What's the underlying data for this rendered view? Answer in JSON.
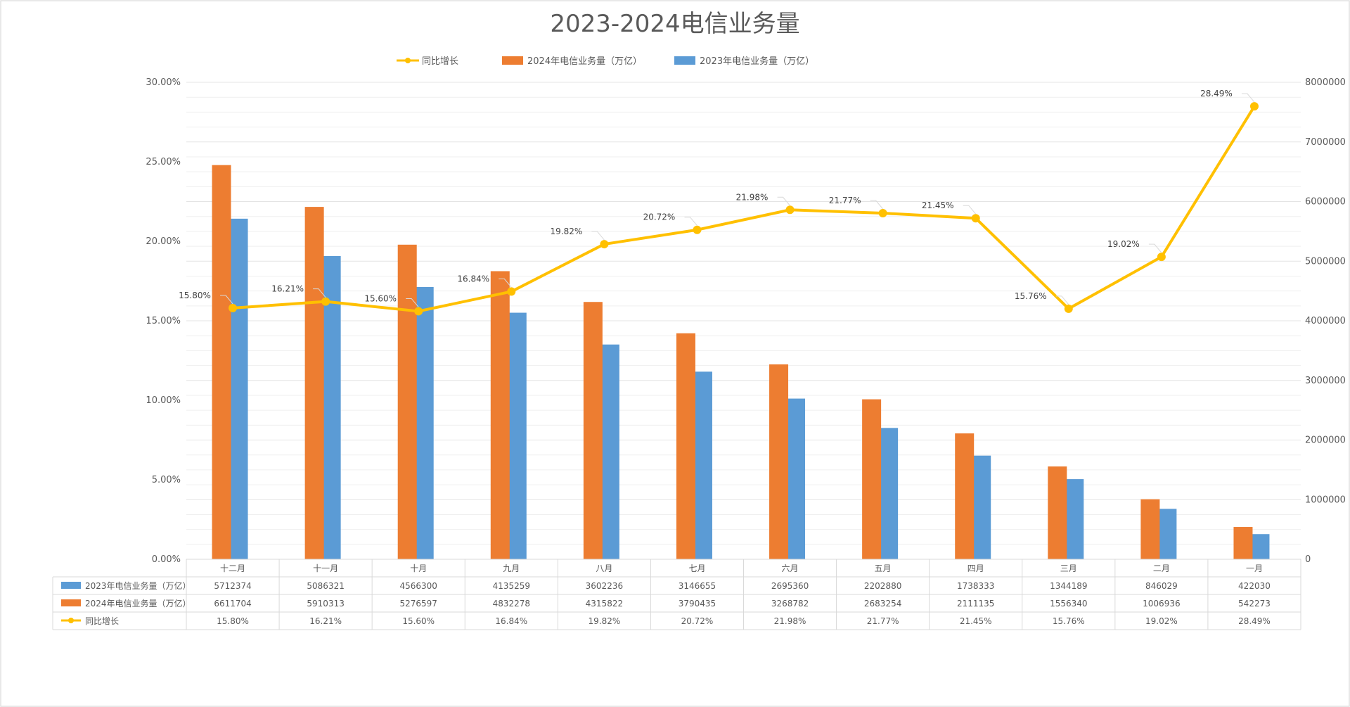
{
  "chart_data": {
    "type": "bar",
    "title": "2023-2024电信业务量",
    "categories": [
      "一月",
      "二月",
      "三月",
      "四月",
      "五月",
      "六月",
      "七月",
      "八月",
      "九月",
      "十月",
      "十一月",
      "十二月"
    ],
    "series": [
      {
        "name": "2023年电信业务量（万亿）",
        "type": "bar",
        "axis": "left",
        "color": "#5b9bd5",
        "values": [
          422030,
          846029,
          1344189,
          1738333,
          2202880,
          2695360,
          3146655,
          3602236,
          4135259,
          4566300,
          5086321,
          5712374
        ]
      },
      {
        "name": "2024年电信业务量（万亿）",
        "type": "bar",
        "axis": "left",
        "color": "#ed7d31",
        "values": [
          542273,
          1006936,
          1556340,
          2111135,
          2683254,
          3268782,
          3790435,
          4315822,
          4832278,
          5276597,
          5910313,
          6611704
        ]
      },
      {
        "name": "同比增长",
        "type": "line",
        "axis": "right",
        "color": "#ffc000",
        "values": [
          28.49,
          19.02,
          15.76,
          21.45,
          21.77,
          21.98,
          20.72,
          19.82,
          16.84,
          15.6,
          16.21,
          15.8
        ],
        "labels": [
          "28.49%",
          "19.02%",
          "15.76%",
          "21.45%",
          "21.77%",
          "21.98%",
          "20.72%",
          "19.82%",
          "16.84%",
          "15.60%",
          "16.21%",
          "15.80%"
        ]
      }
    ],
    "left_axis": {
      "min": 0,
      "max": 8000000,
      "step": 1000000,
      "ticks": [
        "0",
        "1000000",
        "2000000",
        "3000000",
        "4000000",
        "5000000",
        "6000000",
        "7000000",
        "8000000"
      ]
    },
    "right_axis": {
      "min": 0,
      "max": 30,
      "step": 5,
      "ticks": [
        "0.00%",
        "5.00%",
        "10.00%",
        "15.00%",
        "20.00%",
        "25.00%",
        "30.00%"
      ]
    },
    "grid": true,
    "legend_position": "top",
    "data_table": {
      "rows": [
        {
          "series": 0,
          "label": "2023年电信业务量（万亿）",
          "cells": [
            "422030",
            "846029",
            "1344189",
            "1738333",
            "2202880",
            "2695360",
            "3146655",
            "3602236",
            "4135259",
            "4566300",
            "5086321",
            "5712374"
          ]
        },
        {
          "series": 1,
          "label": "2024年电信业务量（万亿）",
          "cells": [
            "542273",
            "1006936",
            "1556340",
            "2111135",
            "2683254",
            "3268782",
            "3790435",
            "4315822",
            "4832278",
            "5276597",
            "5910313",
            "6611704"
          ]
        },
        {
          "series": 2,
          "label": "同比增长",
          "cells": [
            "28.49%",
            "19.02%",
            "15.76%",
            "21.45%",
            "21.77%",
            "21.98%",
            "20.72%",
            "19.82%",
            "16.84%",
            "15.60%",
            "16.21%",
            "15.80%"
          ]
        }
      ]
    },
    "legend": [
      "2023年电信业务量（万亿）",
      "2024年电信业务量（万亿）",
      "同比增长"
    ]
  }
}
